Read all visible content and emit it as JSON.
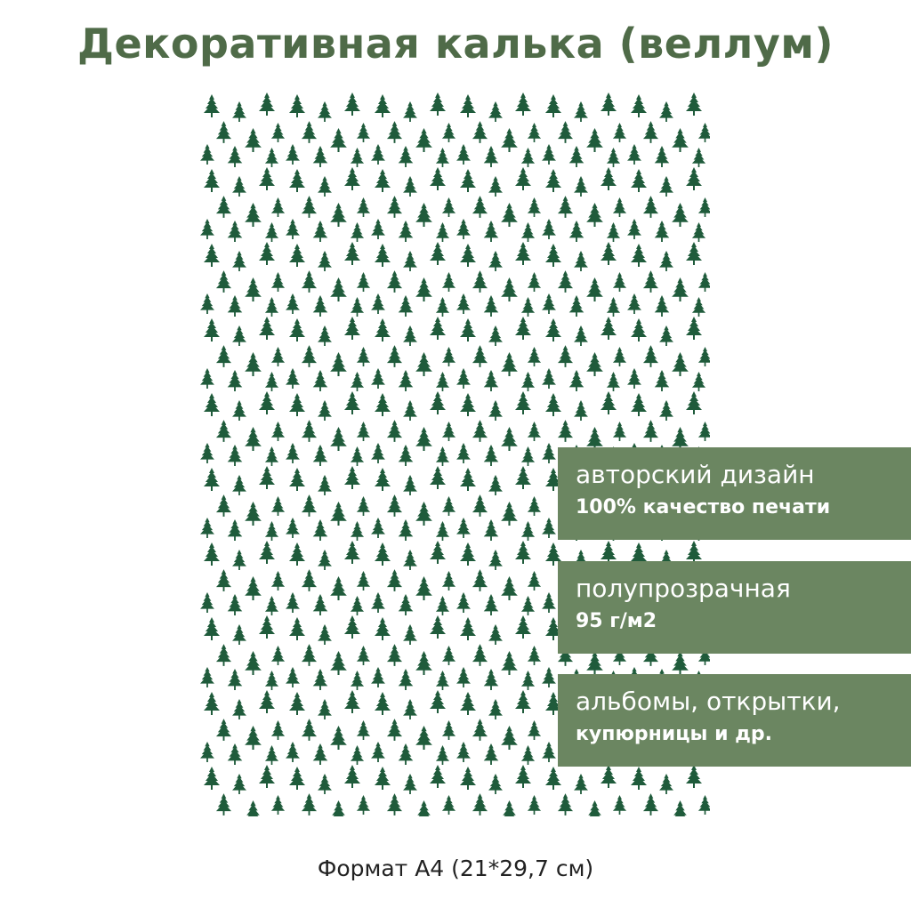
{
  "header": {
    "title": "Декоративная калька (веллум)"
  },
  "badges": [
    {
      "line1": "авторский дизайн",
      "line2": "100% качество печати"
    },
    {
      "line1": "полупрозрачная",
      "line2": "95 г/м2"
    },
    {
      "line1": "альбомы, открытки,",
      "line2": "купюрницы и др."
    }
  ],
  "footer": {
    "text": "Формат А4 (21*29,7 см)"
  }
}
